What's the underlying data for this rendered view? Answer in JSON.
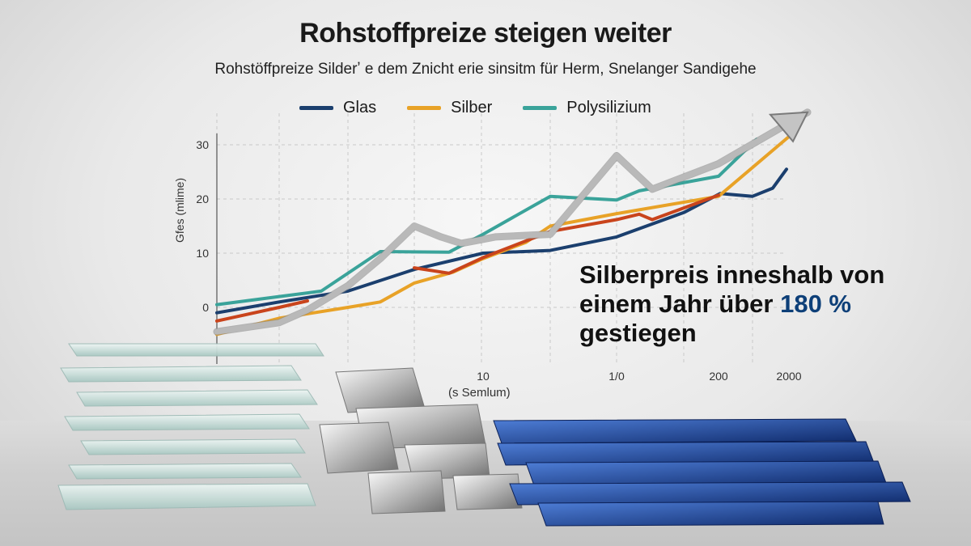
{
  "title": "Rohstoffpreize steigen weiter",
  "subtitle": "Rohstöffpreize Silderʼ e dem Znicht erie sinsitm für Herm, Snelanger Sandigehe",
  "legend": [
    {
      "label": "Glas",
      "color": "#1b3f6e"
    },
    {
      "label": "Silber",
      "color": "#e8a227"
    },
    {
      "label": "Polysilizium",
      "color": "#3aa39a"
    }
  ],
  "annotation": {
    "line1": "Silberpreis inneshalb von",
    "line2_pre": "einem Jahr über ",
    "line2_highlight": "180 %",
    "line3": "gestiegen"
  },
  "colors": {
    "highlight": "#0d3f78",
    "red_line": "#c9441c",
    "trend_arrow": "#b9b9b9"
  },
  "chart_data": {
    "type": "line",
    "ylabel": "Gfes (mlime)",
    "xlabel": "(s Semlum)",
    "y_ticks": [
      "0",
      "10",
      "20",
      "30"
    ],
    "x_ticks": [
      "10",
      "1/0",
      "200",
      "2000"
    ],
    "ylim": [
      -2,
      34
    ],
    "grid": true,
    "series": [
      {
        "name": "Glas",
        "color": "#1b3f6e",
        "values": [
          -1,
          1,
          3,
          7,
          10,
          10.5,
          13,
          17.5,
          21,
          20.5,
          22,
          25.5
        ]
      },
      {
        "name": "Silber",
        "color": "#e8a227",
        "values": [
          -5,
          -2,
          0,
          1,
          4.5,
          6.5,
          9,
          12,
          15,
          17.3,
          20.5,
          31.5
        ]
      },
      {
        "name": "",
        "color": "#c9441c",
        "values": [
          -2.5,
          0,
          1.2,
          null,
          null,
          7.3,
          6.3,
          9.2,
          14,
          16.2,
          17.2,
          16.2,
          20.7
        ]
      },
      {
        "name": "Polysilizium",
        "color": "#3aa39a",
        "values": [
          0.5,
          2,
          3,
          10.3,
          10.2,
          13.5,
          20.5,
          19.8,
          21.5,
          24.2,
          31
        ]
      },
      {
        "name": "",
        "color": "#b9b9b9",
        "values": [
          -4.5,
          -2.8,
          -0.5,
          4,
          9,
          15,
          13,
          11.8,
          13,
          13.5,
          28,
          21.8,
          26.5,
          36
        ]
      }
    ]
  }
}
